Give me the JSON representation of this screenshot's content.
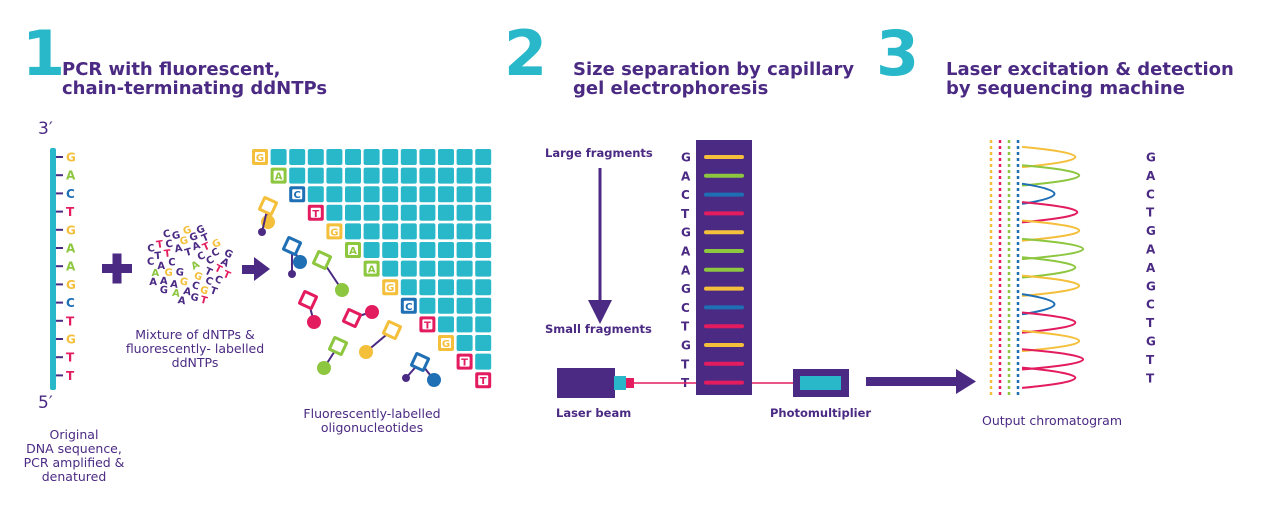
{
  "colors": {
    "purple": "#4b2a83",
    "teal": "#29b8c9",
    "G": "#f4bf3a",
    "A": "#8dc63f",
    "C": "#1f6fb5",
    "T": "#e31c5f"
  },
  "steps": [
    {
      "number": "1",
      "title": "PCR with fluorescent,\nchain-terminating ddNTPs"
    },
    {
      "number": "2",
      "title": "Size separation by capillary\ngel electrophoresis"
    },
    {
      "number": "3",
      "title": "Laser excitation & detection\nby sequencing machine"
    }
  ],
  "template": {
    "top_label": "3′",
    "bottom_label": "5′",
    "bases": [
      "G",
      "A",
      "C",
      "T",
      "G",
      "A",
      "A",
      "G",
      "C",
      "T",
      "G",
      "T",
      "T"
    ],
    "caption": "Original\nDNA sequence,\nPCR amplified &\ndenatured"
  },
  "mixture": {
    "caption": "Mixture of dNTPs &\nfluorescently- labelled\nddNTPs",
    "letters": [
      "A",
      "G",
      "T",
      "G",
      "C",
      "C",
      "G",
      "A",
      "T",
      "G",
      "A",
      "C",
      "T",
      "C",
      "A",
      "G",
      "C",
      "A",
      "T",
      "A",
      "C",
      "T",
      "A",
      "G",
      "G",
      "T",
      "C",
      "A",
      "G",
      "C",
      "A",
      "T",
      "G",
      "T",
      "A",
      "G",
      "G",
      "T",
      "C",
      "G",
      "A",
      "C",
      "T",
      "A",
      "G",
      "T",
      "C",
      "G"
    ]
  },
  "oligos": {
    "caption": "Fluorescently-labelled\noligonucleotides",
    "bases": [
      "G",
      "A",
      "C",
      "T",
      "G",
      "A",
      "A",
      "G",
      "C",
      "T",
      "G",
      "T",
      "T"
    ]
  },
  "electrophoresis": {
    "large_label": "Large fragments",
    "small_label": "Small fragments",
    "bases": [
      "G",
      "A",
      "C",
      "T",
      "G",
      "A",
      "A",
      "G",
      "C",
      "T",
      "G",
      "T",
      "T"
    ],
    "laser_label": "Laser beam",
    "detector_label": "Photomultiplier"
  },
  "chromatogram": {
    "caption": "Output chromatogram",
    "bases": [
      "G",
      "A",
      "C",
      "T",
      "G",
      "A",
      "A",
      "G",
      "C",
      "T",
      "G",
      "T",
      "T"
    ]
  }
}
